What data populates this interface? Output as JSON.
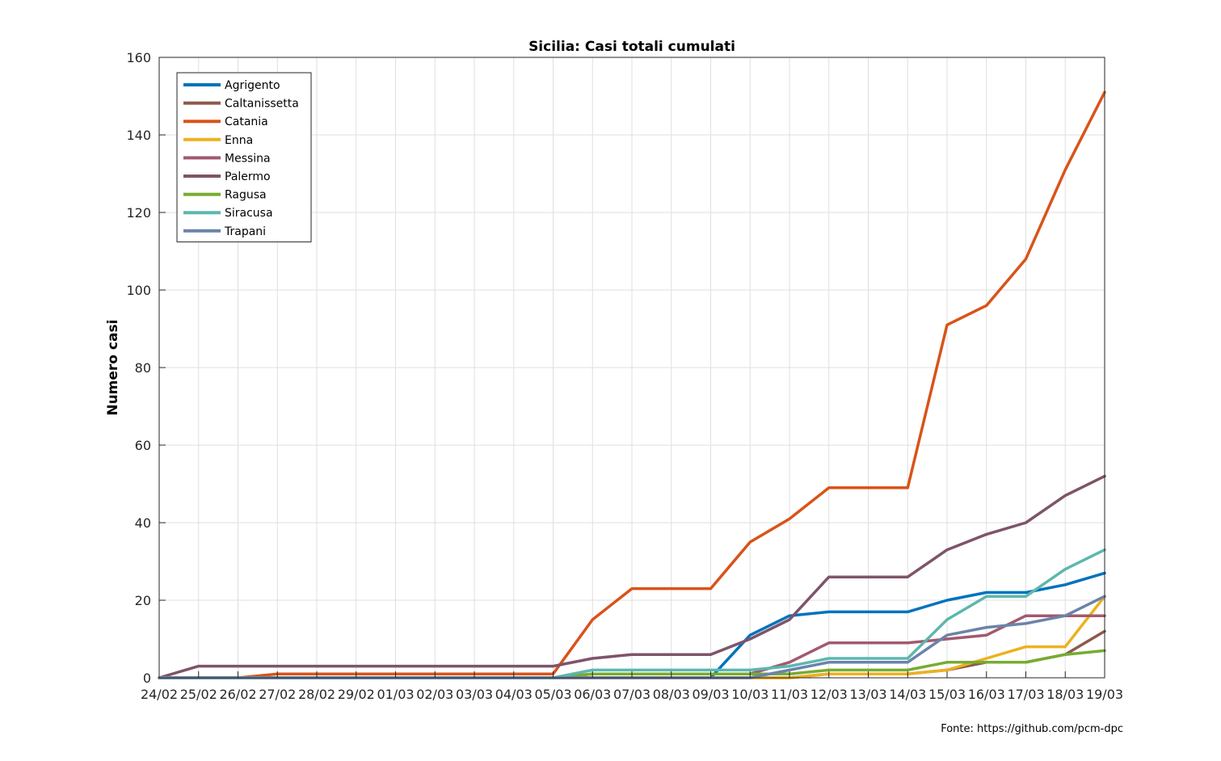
{
  "source_note": "Fonte: https://github.com/pcm-dpc",
  "chart_data": {
    "type": "line",
    "title": "Sicilia: Casi totali cumulati",
    "xlabel": "",
    "ylabel": "Numero casi",
    "ylim": [
      0,
      160
    ],
    "yticks": [
      0,
      20,
      40,
      60,
      80,
      100,
      120,
      140,
      160
    ],
    "grid": true,
    "legend_position": "top-left",
    "categories": [
      "24/02",
      "25/02",
      "26/02",
      "27/02",
      "28/02",
      "29/02",
      "01/03",
      "02/03",
      "03/03",
      "04/03",
      "05/03",
      "06/03",
      "07/03",
      "08/03",
      "09/03",
      "10/03",
      "11/03",
      "12/03",
      "13/03",
      "14/03",
      "15/03",
      "16/03",
      "17/03",
      "18/03",
      "19/03"
    ],
    "series": [
      {
        "name": "Agrigento",
        "color": "#0072BD",
        "values": [
          0,
          0,
          0,
          0,
          0,
          0,
          0,
          0,
          0,
          0,
          0,
          0,
          0,
          0,
          0,
          11,
          16,
          17,
          17,
          17,
          20,
          22,
          22,
          24,
          27
        ]
      },
      {
        "name": "Caltanissetta",
        "color": "#8C5A4B",
        "values": [
          0,
          0,
          0,
          0,
          0,
          0,
          0,
          0,
          0,
          0,
          0,
          0,
          0,
          0,
          0,
          0,
          0,
          1,
          1,
          1,
          2,
          4,
          4,
          6,
          12
        ]
      },
      {
        "name": "Catania",
        "color": "#D95319",
        "values": [
          0,
          0,
          0,
          1,
          1,
          1,
          1,
          1,
          1,
          1,
          1,
          15,
          23,
          23,
          23,
          35,
          41,
          49,
          49,
          49,
          91,
          96,
          108,
          131,
          151
        ]
      },
      {
        "name": "Enna",
        "color": "#EDB120",
        "values": [
          0,
          0,
          0,
          0,
          0,
          0,
          0,
          0,
          0,
          0,
          0,
          0,
          0,
          0,
          0,
          0,
          0,
          1,
          1,
          1,
          2,
          5,
          8,
          8,
          21
        ]
      },
      {
        "name": "Messina",
        "color": "#A2596F",
        "values": [
          0,
          0,
          0,
          0,
          0,
          0,
          0,
          0,
          0,
          0,
          0,
          1,
          1,
          1,
          1,
          1,
          4,
          9,
          9,
          9,
          10,
          11,
          16,
          16,
          16
        ]
      },
      {
        "name": "Palermo",
        "color": "#7E5469",
        "values": [
          0,
          3,
          3,
          3,
          3,
          3,
          3,
          3,
          3,
          3,
          3,
          5,
          6,
          6,
          6,
          10,
          15,
          26,
          26,
          26,
          33,
          37,
          40,
          47,
          52
        ]
      },
      {
        "name": "Ragusa",
        "color": "#77AC30",
        "values": [
          0,
          0,
          0,
          0,
          0,
          0,
          0,
          0,
          0,
          0,
          0,
          1,
          1,
          1,
          1,
          1,
          1,
          2,
          2,
          2,
          4,
          4,
          4,
          6,
          7
        ]
      },
      {
        "name": "Siracusa",
        "color": "#5DB7AE",
        "values": [
          0,
          0,
          0,
          0,
          0,
          0,
          0,
          0,
          0,
          0,
          0,
          2,
          2,
          2,
          2,
          2,
          3,
          5,
          5,
          5,
          15,
          21,
          21,
          28,
          33
        ]
      },
      {
        "name": "Trapani",
        "color": "#6B83AA",
        "values": [
          0,
          0,
          0,
          0,
          0,
          0,
          0,
          0,
          0,
          0,
          0,
          0,
          0,
          0,
          0,
          0,
          2,
          4,
          4,
          4,
          11,
          13,
          14,
          16,
          21
        ]
      }
    ]
  }
}
